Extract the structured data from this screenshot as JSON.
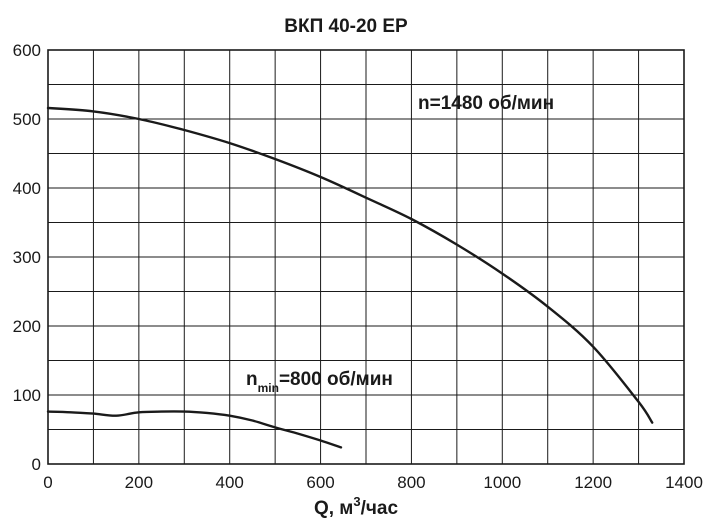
{
  "chart_data": {
    "type": "line",
    "title": "ВКП 40-20 ЕР",
    "xlabel": {
      "prefix": "Q, м",
      "sup": "3",
      "suffix": "/час"
    },
    "ylabel": "",
    "xlim": [
      0,
      1400
    ],
    "ylim": [
      0,
      600
    ],
    "x_ticks": [
      0,
      200,
      400,
      600,
      800,
      1000,
      1200,
      1400
    ],
    "y_ticks": [
      0,
      100,
      200,
      300,
      400,
      500,
      600
    ],
    "x_tick_labels": [
      "0",
      "200",
      "400",
      "600",
      "800",
      "1000",
      "1200",
      "1400"
    ],
    "y_tick_labels": [
      "0",
      "100",
      "200",
      "300",
      "400",
      "500",
      "600"
    ],
    "x_minor_step": 100,
    "y_minor_step": 50,
    "grid": true,
    "series": [
      {
        "name": "n=1480 об/мин",
        "x": [
          0,
          100,
          200,
          300,
          400,
          500,
          600,
          700,
          800,
          900,
          1000,
          1100,
          1200,
          1300,
          1330
        ],
        "y": [
          516,
          511,
          500,
          484,
          465,
          442,
          416,
          386,
          355,
          318,
          276,
          228,
          170,
          90,
          60
        ]
      },
      {
        "name": "nmin=800 об/мин",
        "x": [
          0,
          50,
          100,
          150,
          200,
          250,
          300,
          350,
          400,
          450,
          500,
          550,
          600,
          645
        ],
        "y": [
          76,
          75,
          73,
          70,
          75,
          76,
          76,
          74,
          70,
          63,
          53,
          44,
          34,
          24
        ]
      }
    ],
    "annotations": [
      {
        "text": "n=1480 об/мин"
      },
      {
        "base": "n",
        "sub": "min",
        "rest": "=800 об/мин"
      }
    ]
  }
}
